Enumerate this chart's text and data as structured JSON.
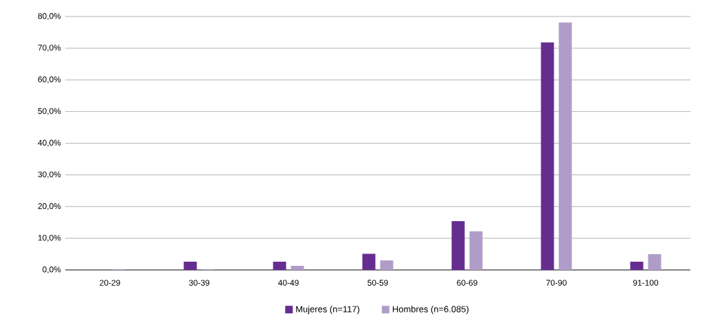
{
  "chart_data": {
    "type": "bar",
    "categories": [
      "20-29",
      "30-39",
      "40-49",
      "50-59",
      "60-69",
      "70-90",
      "91-100"
    ],
    "series": [
      {
        "name": "Mujeres (n=117)",
        "color": "#662d91",
        "values": [
          0,
          2.6,
          2.6,
          5.1,
          15.4,
          71.8,
          2.6
        ]
      },
      {
        "name": "Hombres (n=6.085)",
        "color": "#b09cc9",
        "values": [
          0.2,
          0.2,
          1.3,
          3.0,
          12.2,
          78.1,
          5.0
        ]
      }
    ],
    "ylim": [
      0,
      80
    ],
    "yticks": [
      {
        "value": 0,
        "label": "0,0%"
      },
      {
        "value": 10,
        "label": "10,0%"
      },
      {
        "value": 20,
        "label": "20,0%"
      },
      {
        "value": 30,
        "label": "30,0%"
      },
      {
        "value": 40,
        "label": "40,0%"
      },
      {
        "value": 50,
        "label": "50,0%"
      },
      {
        "value": 60,
        "label": "60,0%"
      },
      {
        "value": 70,
        "label": "70,0%"
      },
      {
        "value": 80,
        "label": "80,0%"
      }
    ],
    "grid": "y",
    "legend": "bottom"
  }
}
